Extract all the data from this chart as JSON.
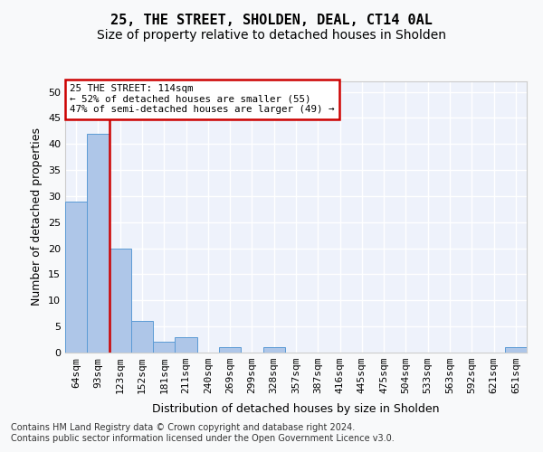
{
  "title1": "25, THE STREET, SHOLDEN, DEAL, CT14 0AL",
  "title2": "Size of property relative to detached houses in Sholden",
  "xlabel": "Distribution of detached houses by size in Sholden",
  "ylabel": "Number of detached properties",
  "categories": [
    "64sqm",
    "93sqm",
    "123sqm",
    "152sqm",
    "181sqm",
    "211sqm",
    "240sqm",
    "269sqm",
    "299sqm",
    "328sqm",
    "357sqm",
    "387sqm",
    "416sqm",
    "445sqm",
    "475sqm",
    "504sqm",
    "533sqm",
    "563sqm",
    "592sqm",
    "621sqm",
    "651sqm"
  ],
  "values": [
    29,
    42,
    20,
    6,
    2,
    3,
    0,
    1,
    0,
    1,
    0,
    0,
    0,
    0,
    0,
    0,
    0,
    0,
    0,
    0,
    1
  ],
  "bar_color": "#aec6e8",
  "bar_edge_color": "#5b9bd5",
  "vline_x": 1.5,
  "vline_color": "#cc0000",
  "annotation_text": "25 THE STREET: 114sqm\n← 52% of detached houses are smaller (55)\n47% of semi-detached houses are larger (49) →",
  "ann_box_fc": "#ffffff",
  "ann_box_ec": "#cc0000",
  "ylim": [
    0,
    52
  ],
  "yticks": [
    0,
    5,
    10,
    15,
    20,
    25,
    30,
    35,
    40,
    45,
    50
  ],
  "plot_bg": "#eef2fb",
  "fig_bg": "#f8f9fa",
  "grid_color": "#ffffff",
  "title_fs": 11,
  "subtitle_fs": 10,
  "tick_fs": 8,
  "label_fs": 9,
  "ann_fs": 7.8,
  "foot_fs": 7,
  "footnote1": "Contains HM Land Registry data © Crown copyright and database right 2024.",
  "footnote2": "Contains public sector information licensed under the Open Government Licence v3.0."
}
